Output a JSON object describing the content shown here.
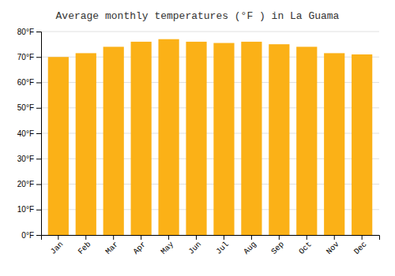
{
  "chart_data": {
    "type": "bar",
    "title": "Average monthly temperatures (°F ) in La Guama",
    "categories": [
      "Jan",
      "Feb",
      "Mar",
      "Apr",
      "May",
      "Jun",
      "Jul",
      "Aug",
      "Sep",
      "Oct",
      "Nov",
      "Dec"
    ],
    "values": [
      70,
      71.5,
      74,
      76,
      77,
      76,
      75.5,
      76,
      75,
      74,
      71.5,
      71
    ],
    "color": "#FBB117",
    "ylim": [
      0,
      80
    ],
    "yticks": [
      {
        "value": 0,
        "label": "0°F"
      },
      {
        "value": 10,
        "label": "10°F"
      },
      {
        "value": 20,
        "label": "20°F"
      },
      {
        "value": 30,
        "label": "30°F"
      },
      {
        "value": 40,
        "label": "40°F"
      },
      {
        "value": 50,
        "label": "50°F"
      },
      {
        "value": 60,
        "label": "60°F"
      },
      {
        "value": 70,
        "label": "70°F"
      },
      {
        "value": 80,
        "label": "80°F"
      }
    ],
    "grid": true
  }
}
